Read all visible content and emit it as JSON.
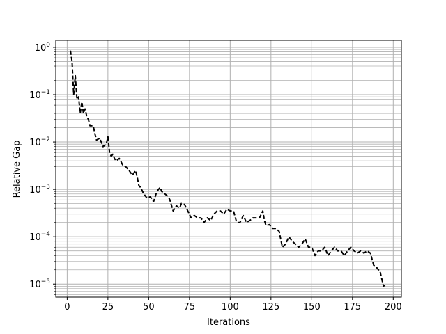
{
  "chart_data": {
    "type": "line",
    "title": "",
    "xlabel": "Iterations",
    "ylabel": "Relative Gap",
    "xlim": [
      -7,
      205
    ],
    "ylim": [
      5.3e-06,
      1.4
    ],
    "yscale": "log",
    "grid": "major+minor",
    "line_style": "dashed",
    "line_color": "#000000",
    "x_ticks": [
      {
        "value": 0,
        "label": "0"
      },
      {
        "value": 25,
        "label": "25"
      },
      {
        "value": 50,
        "label": "50"
      },
      {
        "value": 75,
        "label": "75"
      },
      {
        "value": 100,
        "label": "100"
      },
      {
        "value": 125,
        "label": "125"
      },
      {
        "value": 150,
        "label": "150"
      },
      {
        "value": 175,
        "label": "175"
      },
      {
        "value": 200,
        "label": "200"
      }
    ],
    "y_ticks": [
      {
        "value": 1,
        "base": "10",
        "exp": "0"
      },
      {
        "value": 0.1,
        "base": "10",
        "exp": "−1"
      },
      {
        "value": 0.01,
        "base": "10",
        "exp": "−2"
      },
      {
        "value": 0.001,
        "base": "10",
        "exp": "−3"
      },
      {
        "value": 0.0001,
        "base": "10",
        "exp": "−4"
      },
      {
        "value": 1e-05,
        "base": "10",
        "exp": "−5"
      }
    ],
    "series": [
      {
        "x": [
          2,
          3,
          4,
          5,
          6,
          7,
          8,
          9,
          10,
          11,
          12,
          13,
          14,
          15,
          16,
          17,
          18,
          20,
          22,
          24,
          25,
          26,
          27,
          28,
          29,
          30,
          32,
          34,
          36,
          38,
          40,
          42,
          43,
          44,
          45,
          47,
          49,
          51,
          53,
          55,
          57,
          58,
          60,
          62,
          63,
          65,
          67,
          69,
          70,
          72,
          74,
          76,
          78,
          80,
          82,
          84,
          86,
          88,
          90,
          92,
          94,
          96,
          98,
          100,
          102,
          104,
          106,
          108,
          110,
          112,
          114,
          116,
          118,
          120,
          121,
          122,
          124,
          126,
          128,
          130,
          132,
          134,
          136,
          138,
          140,
          142,
          144,
          146,
          148,
          150,
          152,
          154,
          156,
          158,
          160,
          162,
          164,
          166,
          168,
          170,
          172,
          174,
          176,
          178,
          180,
          182,
          184,
          186,
          188,
          190,
          192,
          194,
          195
        ],
        "y": [
          0.85,
          0.5,
          0.1,
          0.25,
          0.08,
          0.09,
          0.04,
          0.07,
          0.04,
          0.05,
          0.035,
          0.03,
          0.022,
          0.022,
          0.022,
          0.015,
          0.011,
          0.012,
          0.008,
          0.009,
          0.013,
          0.006,
          0.005,
          0.0055,
          0.0045,
          0.004,
          0.0045,
          0.0033,
          0.003,
          0.0025,
          0.002,
          0.0025,
          0.0018,
          0.0012,
          0.0011,
          0.0008,
          0.00065,
          0.0007,
          0.00055,
          0.0009,
          0.0011,
          0.0009,
          0.0008,
          0.0007,
          0.0006,
          0.00035,
          0.00045,
          0.0004,
          0.0005,
          0.00048,
          0.00035,
          0.00025,
          0.00028,
          0.00025,
          0.00025,
          0.0002,
          0.00025,
          0.00022,
          0.0003,
          0.00035,
          0.00035,
          0.0003,
          0.00038,
          0.00035,
          0.00035,
          0.0002,
          0.0002,
          0.00028,
          0.0002,
          0.00022,
          0.00025,
          0.00025,
          0.00025,
          0.00035,
          0.00022,
          0.00017,
          0.00018,
          0.00015,
          0.00015,
          0.00013,
          6e-05,
          7e-05,
          0.0001,
          8e-05,
          7e-05,
          6e-05,
          7e-05,
          9e-05,
          6e-05,
          6e-05,
          4e-05,
          5e-05,
          5e-05,
          6e-05,
          4e-05,
          5e-05,
          6e-05,
          5e-05,
          5e-05,
          4e-05,
          5e-05,
          6e-05,
          5e-05,
          4.5e-05,
          5e-05,
          4.5e-05,
          5e-05,
          4.5e-05,
          2.5e-05,
          2.2e-05,
          1.8e-05,
          9e-06,
          9.5e-06
        ]
      }
    ]
  }
}
